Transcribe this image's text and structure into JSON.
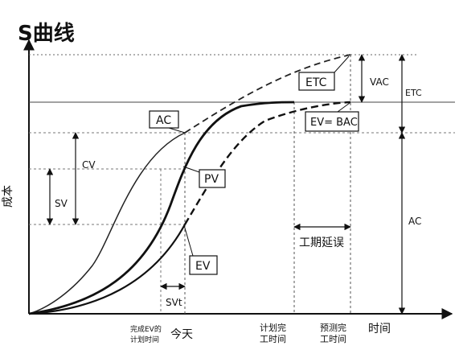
{
  "title": "S曲线",
  "axis": {
    "y_label": "成本",
    "x_label": "时间"
  },
  "curves": {
    "ac": "AC",
    "pv": "PV",
    "ev": "EV",
    "etc": "ETC",
    "ev_bac": "EV= BAC"
  },
  "variances": {
    "cv": "CV",
    "sv": "SV",
    "svt": "SVt",
    "vac": "VAC",
    "etc_right": "ETC",
    "ac_right": "AC"
  },
  "timeline": {
    "ev_planned_line1": "完成EV的",
    "ev_planned_line2": "计划时间",
    "today": "今天",
    "planned_finish_line1": "计划完",
    "planned_finish_line2": "工时间",
    "forecast_finish_line1": "预测完",
    "forecast_finish_line2": "工时间",
    "delay": "工期延误"
  }
}
